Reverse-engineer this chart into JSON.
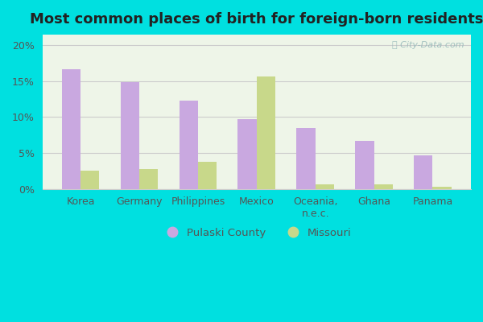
{
  "title": "Most common places of birth for foreign-born residents",
  "categories": [
    "Korea",
    "Germany",
    "Philippines",
    "Mexico",
    "Oceania,\nn.e.c.",
    "Ghana",
    "Panama"
  ],
  "pulaski": [
    16.7,
    14.9,
    12.3,
    9.7,
    8.5,
    6.7,
    4.7
  ],
  "missouri": [
    2.5,
    2.7,
    3.8,
    15.6,
    0.6,
    0.6,
    0.3
  ],
  "pulaski_color": "#c9a8e0",
  "missouri_color": "#c8d88a",
  "background_outer": "#00e0e0",
  "yticks": [
    0,
    5,
    10,
    15,
    20
  ],
  "ylim": [
    0,
    21.5
  ],
  "title_fontsize": 13,
  "tick_fontsize": 9,
  "legend_pulaski": "Pulaski County",
  "legend_missouri": "Missouri",
  "watermark": "City-Data.com",
  "bar_width": 0.32
}
